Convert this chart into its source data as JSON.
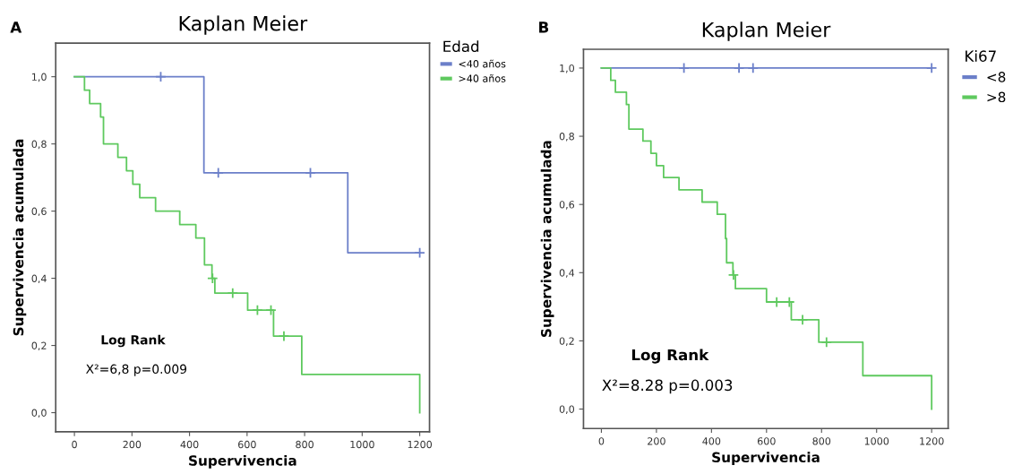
{
  "chart_data": [
    {
      "type": "step",
      "title": "Kaplan Meier",
      "xlabel": "Supervivencia",
      "ylabel": "Supervivencia acumulada",
      "legend_title": "Edad",
      "legend": "top right",
      "grid": false,
      "annotations": [
        "A",
        "Log Rank",
        "X²=6,8 p=0.009"
      ],
      "xlim": [
        -65,
        1234
      ],
      "ylim": [
        -0.057,
        1.1
      ],
      "xticks": [
        0,
        200,
        400,
        600,
        800,
        1000,
        1200
      ],
      "yticks": [
        {
          "value": 0,
          "label": "0,0"
        },
        {
          "value": 0.2,
          "label": "0,2"
        },
        {
          "value": 0.4,
          "label": "0,4"
        },
        {
          "value": 0.6,
          "label": "0,6"
        },
        {
          "value": 0.8,
          "label": "0,8"
        },
        {
          "value": 1,
          "label": "1,0"
        }
      ],
      "series": [
        {
          "name": "<40 años",
          "color": "#6b7fc9",
          "x": [
            0,
            450,
            950,
            1200
          ],
          "values": [
            1,
            0.714,
            0.476,
            0.476
          ]
        },
        {
          "name": ">40 años",
          "color": "#5ec95e",
          "x": [
            0,
            35,
            53,
            91,
            101,
            151,
            181,
            203,
            227,
            282,
            366,
            422,
            452,
            478,
            488,
            602,
            692,
            790,
            1200,
            1200
          ],
          "values": [
            1,
            0.96,
            0.92,
            0.88,
            0.8,
            0.76,
            0.72,
            0.68,
            0.64,
            0.6,
            0.56,
            0.52,
            0.44,
            0.4,
            0.356,
            0.305,
            0.228,
            0.114,
            0.114,
            0
          ]
        },
        {
          "type": "scatter",
          "marker": "cross",
          "color": "#6b7fc9",
          "x": [
            300,
            500,
            820,
            1200
          ],
          "values": [
            1,
            0.714,
            0.714,
            0.476
          ]
        },
        {
          "type": "scatter",
          "marker": "cross",
          "color": "#5ec95e",
          "x": [
            480,
            550,
            636,
            683,
            728
          ],
          "values": [
            0.4,
            0.356,
            0.305,
            0.305,
            0.228
          ]
        }
      ]
    },
    {
      "type": "step",
      "title": "Kaplan Meier",
      "xlabel": "Supervivencia",
      "ylabel": "Supervivencia acumulada",
      "legend_title": "Ki67",
      "legend": "top right",
      "grid": false,
      "annotations": [
        "B",
        "Log Rank",
        "X²=8.28 p=0.003"
      ],
      "xlim": [
        -65,
        1260
      ],
      "ylim": [
        -0.057,
        1.055
      ],
      "xticks": [
        0,
        200,
        400,
        600,
        800,
        1000,
        1200
      ],
      "yticks": [
        {
          "value": 0,
          "label": "0,0"
        },
        {
          "value": 0.2,
          "label": "0,2"
        },
        {
          "value": 0.4,
          "label": "0,4"
        },
        {
          "value": 0.6,
          "label": "0,6"
        },
        {
          "value": 0.8,
          "label": "0,8"
        },
        {
          "value": 1,
          "label": "1,0"
        }
      ],
      "series": [
        {
          "name": "<8",
          "color": "#6b7fc9",
          "x": [
            0,
            1200
          ],
          "values": [
            1,
            1
          ]
        },
        {
          "name": ">8",
          "color": "#5ec95e",
          "x": [
            0,
            34,
            51,
            91,
            100,
            151,
            180,
            200,
            226,
            282,
            366,
            421,
            451,
            455,
            478,
            487,
            600,
            690,
            790,
            950,
            1200,
            1200
          ],
          "values": [
            1,
            0.964,
            0.929,
            0.893,
            0.821,
            0.786,
            0.75,
            0.714,
            0.679,
            0.643,
            0.607,
            0.571,
            0.5,
            0.429,
            0.393,
            0.353,
            0.314,
            0.262,
            0.196,
            0.098,
            0.098,
            0
          ]
        },
        {
          "type": "scatter",
          "marker": "cross",
          "color": "#6b7fc9",
          "x": [
            300,
            500,
            551,
            1200
          ],
          "values": [
            1,
            1,
            1,
            1
          ]
        },
        {
          "type": "scatter",
          "marker": "cross",
          "color": "#5ec95e",
          "x": [
            480,
            637,
            683,
            731,
            818
          ],
          "values": [
            0.393,
            0.314,
            0.314,
            0.262,
            0.196
          ]
        }
      ]
    }
  ]
}
